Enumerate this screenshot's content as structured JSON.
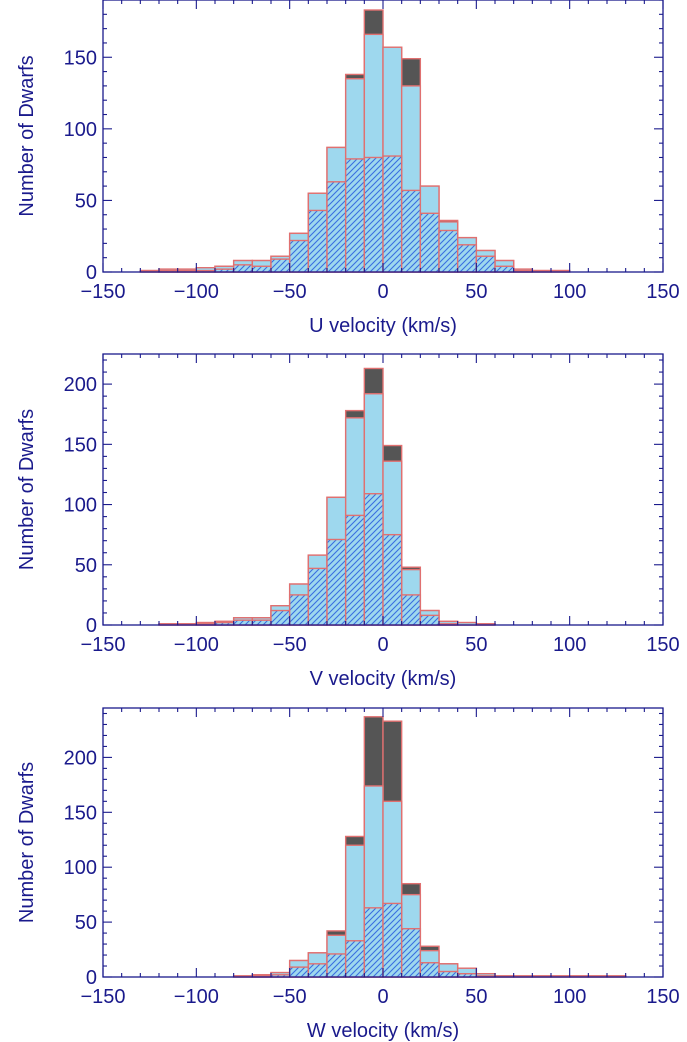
{
  "colors": {
    "axis": "#1a1a8c",
    "light_bar": "#9ed8ee",
    "dark_bar": "#555555",
    "bar_edge": "#e07070",
    "hatch": "#3a6fe0",
    "hatch_fill": "#9ed8ee"
  },
  "chart_data": [
    {
      "type": "bar",
      "xlabel": "U velocity (km/s)",
      "ylabel": "Number of Dwarfs",
      "xlim": [
        -150,
        150
      ],
      "ylim": [
        0,
        190
      ],
      "xticks": [
        -150,
        -100,
        -50,
        0,
        50,
        100,
        150
      ],
      "yticks": [
        0,
        50,
        100,
        150
      ],
      "bin_width": 10,
      "bin_left_edges": [
        -130,
        -120,
        -110,
        -100,
        -90,
        -80,
        -70,
        -60,
        -50,
        -40,
        -30,
        -20,
        -10,
        0,
        10,
        20,
        30,
        40,
        50,
        60,
        70,
        80,
        90
      ],
      "series": [
        {
          "values": [
            1,
            2,
            2,
            3,
            4,
            8,
            8,
            11,
            27,
            55,
            87,
            138,
            183,
            157,
            149,
            60,
            36,
            24,
            15,
            8,
            2,
            1,
            1
          ]
        },
        {
          "values": [
            1,
            2,
            2,
            3,
            4,
            8,
            8,
            11,
            27,
            55,
            87,
            135,
            166,
            157,
            130,
            60,
            35,
            24,
            15,
            8,
            2,
            1,
            1
          ]
        },
        {
          "values": [
            0,
            1,
            1,
            1,
            2,
            5,
            4,
            9,
            22,
            43,
            63,
            79,
            80,
            81,
            57,
            41,
            29,
            19,
            11,
            4,
            1,
            0,
            0
          ]
        }
      ]
    },
    {
      "type": "bar",
      "xlabel": "V velocity (km/s)",
      "ylabel": "Number of Dwarfs",
      "xlim": [
        -150,
        150
      ],
      "ylim": [
        0,
        225
      ],
      "xticks": [
        -150,
        -100,
        -50,
        0,
        50,
        100,
        150
      ],
      "yticks": [
        0,
        50,
        100,
        150,
        200
      ],
      "bin_width": 10,
      "bin_left_edges": [
        -120,
        -110,
        -100,
        -90,
        -80,
        -70,
        -60,
        -50,
        -40,
        -30,
        -20,
        -10,
        0,
        10,
        20,
        30,
        40,
        50
      ],
      "series": [
        {
          "values": [
            1,
            1,
            2,
            3,
            6,
            6,
            16,
            34,
            58,
            106,
            178,
            213,
            149,
            48,
            12,
            3,
            2,
            1
          ]
        },
        {
          "values": [
            1,
            1,
            2,
            3,
            6,
            6,
            16,
            34,
            58,
            106,
            172,
            192,
            136,
            46,
            12,
            3,
            2,
            1
          ]
        },
        {
          "values": [
            0,
            0,
            1,
            2,
            4,
            4,
            12,
            25,
            47,
            71,
            91,
            109,
            75,
            25,
            8,
            1,
            0,
            0
          ]
        }
      ]
    },
    {
      "type": "bar",
      "xlabel": "W velocity (km/s)",
      "ylabel": "Number of Dwarfs",
      "xlim": [
        -150,
        150
      ],
      "ylim": [
        0,
        245
      ],
      "xticks": [
        -150,
        -100,
        -50,
        0,
        50,
        100,
        150
      ],
      "yticks": [
        0,
        50,
        100,
        150,
        200
      ],
      "bin_width": 10,
      "bin_left_edges": [
        -80,
        -70,
        -60,
        -50,
        -40,
        -30,
        -20,
        -10,
        0,
        10,
        20,
        30,
        40,
        50,
        60,
        70,
        80,
        90,
        100,
        110,
        120
      ],
      "series": [
        {
          "values": [
            1,
            2,
            4,
            15,
            22,
            42,
            128,
            237,
            233,
            85,
            28,
            12,
            8,
            3,
            1,
            1,
            1,
            1,
            1,
            1,
            1
          ]
        },
        {
          "values": [
            1,
            2,
            4,
            15,
            22,
            38,
            120,
            174,
            160,
            75,
            24,
            12,
            8,
            3,
            1,
            1,
            1,
            1,
            1,
            1,
            1
          ]
        },
        {
          "values": [
            0,
            1,
            2,
            9,
            12,
            21,
            33,
            63,
            67,
            44,
            13,
            5,
            3,
            1,
            0,
            0,
            0,
            0,
            0,
            0,
            0
          ]
        }
      ]
    }
  ]
}
